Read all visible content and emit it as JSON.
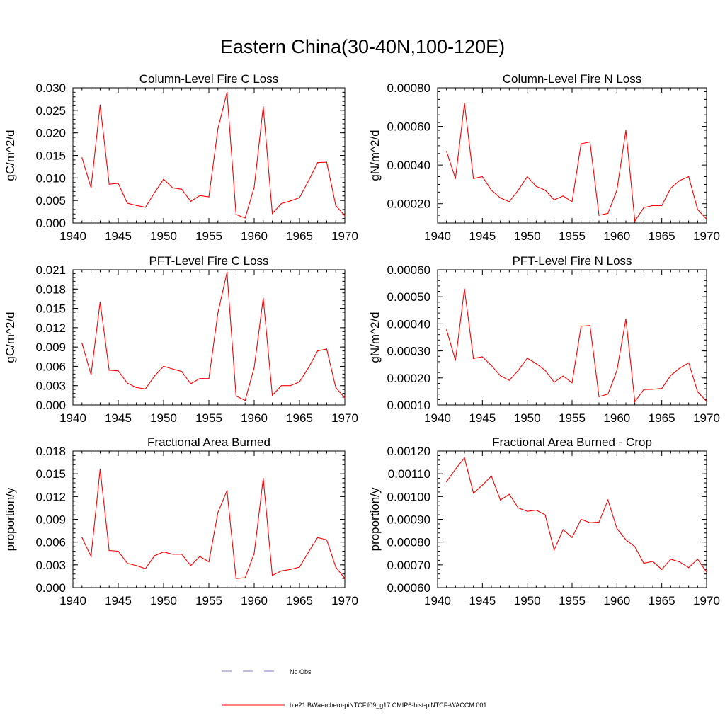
{
  "figure": {
    "title": "Eastern China(30-40N,100-120E)",
    "legend": {
      "obs_label": "No Obs",
      "obs_color": "#7777cc",
      "model_label": "b.e21.BWaerchem-piNTCF.f09_g17.CMIP6-hist-piNTCF-WACCM.001",
      "model_color": "#ff0000"
    }
  },
  "chart_data": [
    {
      "type": "line",
      "title": "Column-Level Fire C Loss",
      "ylabel": "gC/m^2/d",
      "xlim": [
        1940,
        1970
      ],
      "ylim": [
        0,
        0.03
      ],
      "xticks": [
        "1940",
        "1945",
        "1950",
        "1955",
        "1960",
        "1965",
        "1970"
      ],
      "yticks": [
        "0.000",
        "0.005",
        "0.010",
        "0.015",
        "0.020",
        "0.025",
        "0.030"
      ],
      "x": [
        1941,
        1942,
        1943,
        1944,
        1945,
        1946,
        1947,
        1948,
        1949,
        1950,
        1951,
        1952,
        1953,
        1954,
        1955,
        1956,
        1957,
        1958,
        1959,
        1960,
        1961,
        1962,
        1963,
        1964,
        1965,
        1966,
        1967,
        1968,
        1969,
        1970
      ],
      "values": [
        0.0145,
        0.0078,
        0.0262,
        0.0086,
        0.0088,
        0.0044,
        0.0039,
        0.0035,
        0.0067,
        0.0097,
        0.0078,
        0.0075,
        0.0048,
        0.0061,
        0.0058,
        0.0209,
        0.029,
        0.0019,
        0.0011,
        0.0079,
        0.0258,
        0.0021,
        0.0043,
        0.0049,
        0.0056,
        0.0094,
        0.0134,
        0.0135,
        0.0039,
        0.0016
      ],
      "color": "#ff0000"
    },
    {
      "type": "line",
      "title": "Column-Level Fire N Loss",
      "ylabel": "gN/m^2/d",
      "xlim": [
        1940,
        1970
      ],
      "ylim": [
        0.0001,
        0.0008
      ],
      "xticks": [
        "1940",
        "1945",
        "1950",
        "1955",
        "1960",
        "1965",
        "1970"
      ],
      "yticks": [
        "0.00020",
        "0.00040",
        "0.00060",
        "0.00080"
      ],
      "ytick_values": [
        0.0002,
        0.0004,
        0.0006,
        0.0008
      ],
      "x": [
        1941,
        1942,
        1943,
        1944,
        1945,
        1946,
        1947,
        1948,
        1949,
        1950,
        1951,
        1952,
        1953,
        1954,
        1955,
        1956,
        1957,
        1958,
        1959,
        1960,
        1961,
        1962,
        1963,
        1964,
        1965,
        1966,
        1967,
        1968,
        1969,
        1970
      ],
      "values": [
        0.00047,
        0.00033,
        0.00072,
        0.00033,
        0.00034,
        0.00027,
        0.00023,
        0.00021,
        0.00027,
        0.00034,
        0.00029,
        0.00027,
        0.00022,
        0.00024,
        0.00021,
        0.00051,
        0.00052,
        0.00014,
        0.00015,
        0.00027,
        0.00058,
        0.00011,
        0.00018,
        0.00019,
        0.00019,
        0.00028,
        0.00032,
        0.00034,
        0.00017,
        0.00012
      ],
      "color": "#ff0000"
    },
    {
      "type": "line",
      "title": "PFT-Level Fire C Loss",
      "ylabel": "gC/m^2/d",
      "xlim": [
        1940,
        1970
      ],
      "ylim": [
        0,
        0.021
      ],
      "xticks": [
        "1940",
        "1945",
        "1950",
        "1955",
        "1960",
        "1965",
        "1970"
      ],
      "yticks": [
        "0.000",
        "0.003",
        "0.006",
        "0.009",
        "0.012",
        "0.015",
        "0.018",
        "0.021"
      ],
      "x": [
        1941,
        1942,
        1943,
        1944,
        1945,
        1946,
        1947,
        1948,
        1949,
        1950,
        1951,
        1952,
        1953,
        1954,
        1955,
        1956,
        1957,
        1958,
        1959,
        1960,
        1961,
        1962,
        1963,
        1964,
        1965,
        1966,
        1967,
        1968,
        1969,
        1970
      ],
      "values": [
        0.0096,
        0.0047,
        0.016,
        0.0054,
        0.0053,
        0.0034,
        0.0027,
        0.0025,
        0.0045,
        0.006,
        0.0056,
        0.0052,
        0.0033,
        0.0041,
        0.0041,
        0.0143,
        0.0206,
        0.0014,
        0.0007,
        0.0058,
        0.0166,
        0.0015,
        0.003,
        0.003,
        0.0036,
        0.0058,
        0.0084,
        0.0087,
        0.0027,
        0.0011
      ],
      "color": "#ff0000"
    },
    {
      "type": "line",
      "title": "PFT-Level Fire N Loss",
      "ylabel": "gN/m^2/d",
      "xlim": [
        1940,
        1970
      ],
      "ylim": [
        0.0001,
        0.0006
      ],
      "xticks": [
        "1940",
        "1945",
        "1950",
        "1955",
        "1960",
        "1965",
        "1970"
      ],
      "yticks": [
        "0.00010",
        "0.00020",
        "0.00030",
        "0.00040",
        "0.00050",
        "0.00060"
      ],
      "x": [
        1941,
        1942,
        1943,
        1944,
        1945,
        1946,
        1947,
        1948,
        1949,
        1950,
        1951,
        1952,
        1953,
        1954,
        1955,
        1956,
        1957,
        1958,
        1959,
        1960,
        1961,
        1962,
        1963,
        1964,
        1965,
        1966,
        1967,
        1968,
        1969,
        1970
      ],
      "values": [
        0.000378,
        0.000265,
        0.000529,
        0.000272,
        0.000278,
        0.000246,
        0.000208,
        0.000191,
        0.000228,
        0.000273,
        0.000253,
        0.000228,
        0.000184,
        0.000207,
        0.000182,
        0.000391,
        0.000394,
        0.000131,
        0.00014,
        0.000227,
        0.000418,
        0.000112,
        0.000157,
        0.000158,
        0.000161,
        0.000209,
        0.000236,
        0.000256,
        0.000149,
        0.000113
      ],
      "color": "#ff0000"
    },
    {
      "type": "line",
      "title": "Fractional Area Burned",
      "ylabel": "proportion/y",
      "xlim": [
        1940,
        1970
      ],
      "ylim": [
        0,
        0.018
      ],
      "xticks": [
        "1940",
        "1945",
        "1950",
        "1955",
        "1960",
        "1965",
        "1970"
      ],
      "yticks": [
        "0.000",
        "0.003",
        "0.006",
        "0.009",
        "0.012",
        "0.015",
        "0.018"
      ],
      "x": [
        1941,
        1942,
        1943,
        1944,
        1945,
        1946,
        1947,
        1948,
        1949,
        1950,
        1951,
        1952,
        1953,
        1954,
        1955,
        1956,
        1957,
        1958,
        1959,
        1960,
        1961,
        1962,
        1963,
        1964,
        1965,
        1966,
        1967,
        1968,
        1969,
        1970
      ],
      "values": [
        0.0066,
        0.0041,
        0.0156,
        0.0049,
        0.0048,
        0.0032,
        0.0029,
        0.0025,
        0.0042,
        0.0047,
        0.0044,
        0.0044,
        0.0029,
        0.0041,
        0.0034,
        0.0099,
        0.0128,
        0.0012,
        0.0013,
        0.0045,
        0.0144,
        0.0016,
        0.0022,
        0.0024,
        0.0027,
        0.0047,
        0.0066,
        0.0063,
        0.0027,
        0.0012
      ],
      "color": "#ff0000"
    },
    {
      "type": "line",
      "title": "Fractional Area Burned - Crop",
      "ylabel": "proportion/y",
      "xlim": [
        1940,
        1970
      ],
      "ylim": [
        0.0006,
        0.0012
      ],
      "xticks": [
        "1940",
        "1945",
        "1950",
        "1955",
        "1960",
        "1965",
        "1970"
      ],
      "yticks": [
        "0.00060",
        "0.00070",
        "0.00080",
        "0.00090",
        "0.00100",
        "0.00110",
        "0.00120"
      ],
      "x": [
        1941,
        1942,
        1943,
        1944,
        1945,
        1946,
        1947,
        1948,
        1949,
        1950,
        1951,
        1952,
        1953,
        1954,
        1955,
        1956,
        1957,
        1958,
        1959,
        1960,
        1961,
        1962,
        1963,
        1964,
        1965,
        1966,
        1967,
        1968,
        1969,
        1970
      ],
      "values": [
        0.001065,
        0.00112,
        0.00117,
        0.001015,
        0.00105,
        0.00109,
        0.000985,
        0.00101,
        0.00095,
        0.000935,
        0.00094,
        0.00092,
        0.000765,
        0.000855,
        0.00082,
        0.0009,
        0.000885,
        0.000888,
        0.000985,
        0.00086,
        0.00081,
        0.00078,
        0.000707,
        0.000715,
        0.00068,
        0.000725,
        0.000713,
        0.000688,
        0.000725,
        0.000668
      ],
      "color": "#ff0000"
    }
  ]
}
